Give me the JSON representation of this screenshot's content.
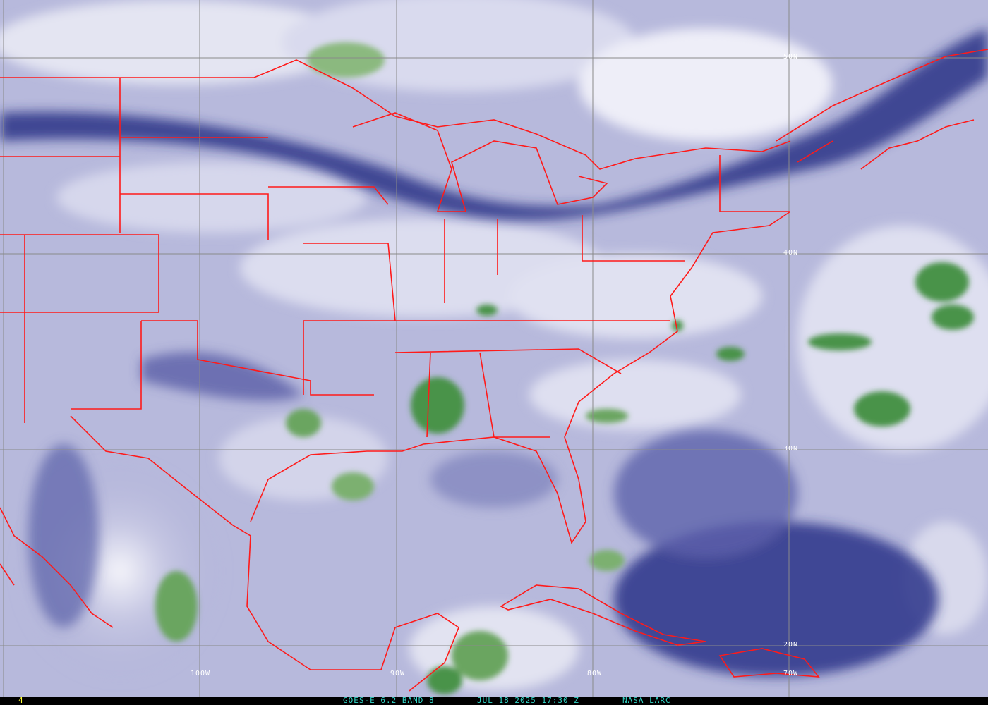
{
  "image": {
    "product": "GOES-E 6.2 BAND 8",
    "datetime": "JUL 18 2025 17:30 Z",
    "source": "NASA LARC",
    "frame_number": "4"
  },
  "grid_labels": {
    "lat": [
      "50N",
      "40N",
      "30N",
      "20N"
    ],
    "lon": [
      "100W",
      "90W",
      "80W",
      "70W"
    ]
  },
  "colors": {
    "dry_dark": "#1e2a7a",
    "moist_light": "#e8e8f4",
    "mid": "#9a9ccb",
    "cold_cloud_green": "#3f8a3a",
    "borders": "#ff1a1a",
    "grid": "#8a8a8a",
    "caption_text": "#33d6c8",
    "frame_number": "#ffff33"
  }
}
